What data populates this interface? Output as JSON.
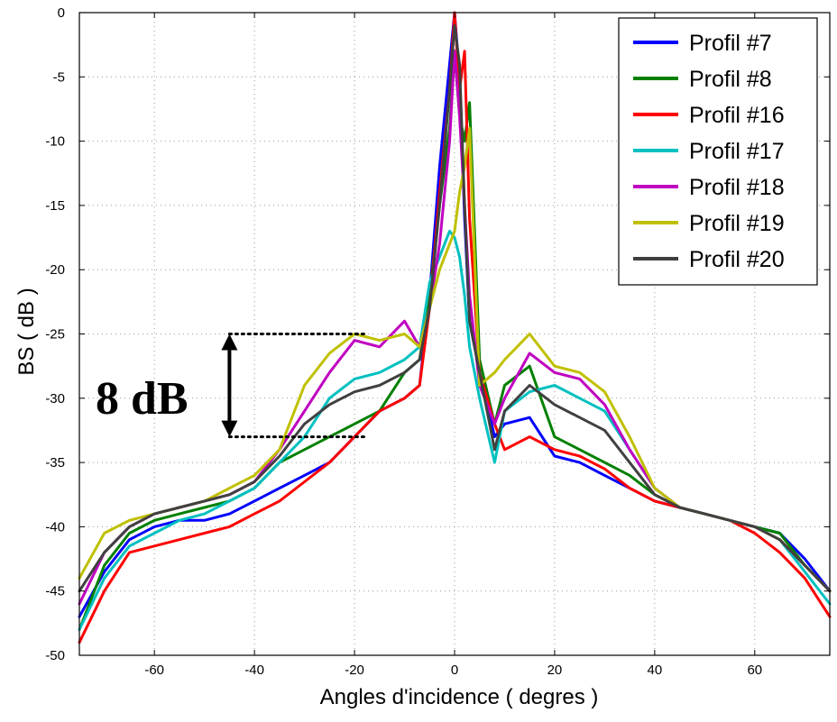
{
  "chart_data": {
    "type": "line",
    "title": "",
    "xlabel": "Angles d'incidence ( degres )",
    "ylabel": "BS ( dB )",
    "xlim": [
      -75,
      75
    ],
    "ylim": [
      -50,
      0
    ],
    "xticks": [
      -60,
      -40,
      -20,
      0,
      20,
      40,
      60
    ],
    "yticks": [
      0,
      -5,
      -10,
      -15,
      -20,
      -25,
      -30,
      -35,
      -40,
      -45,
      -50
    ],
    "grid": true,
    "legend_position": "top-right",
    "annotation": {
      "text": "8 dB",
      "top_level": -25,
      "bottom_level": -33,
      "x_range": [
        -45,
        -18
      ],
      "arrow_x": -45
    },
    "x": [
      -75,
      -70,
      -65,
      -60,
      -55,
      -50,
      -45,
      -40,
      -35,
      -30,
      -25,
      -20,
      -15,
      -10,
      -7,
      -5,
      -3,
      -1,
      0,
      1,
      2,
      3,
      5,
      8,
      10,
      15,
      20,
      25,
      30,
      35,
      40,
      45,
      50,
      55,
      60,
      65,
      70,
      75
    ],
    "series": [
      {
        "name": "Profil #7",
        "color": "#0000ff",
        "values": [
          -47,
          -43.5,
          -41,
          -40,
          -39.5,
          -39.5,
          -39,
          -38,
          -37,
          -36,
          -35,
          -33,
          -31,
          -30,
          -29,
          -22,
          -12,
          -4,
          0,
          -5,
          -16,
          -24,
          -28,
          -33,
          -32,
          -31.5,
          -34.5,
          -35,
          -36,
          -37,
          -38,
          -38.5,
          -39,
          -39.5,
          -40,
          -40.5,
          -42.5,
          -45
        ]
      },
      {
        "name": "Profil #8",
        "color": "#008000",
        "values": [
          -48,
          -43,
          -40.5,
          -39.5,
          -39,
          -38.5,
          -38,
          -37,
          -35,
          -34,
          -33,
          -32,
          -31,
          -28,
          -27,
          -22,
          -15,
          -9,
          -3,
          -8,
          -10,
          -7,
          -27,
          -32,
          -29,
          -27.5,
          -33,
          -34,
          -35,
          -36,
          -37.5,
          -38.5,
          -39,
          -39.5,
          -40,
          -40.5,
          -43,
          -45
        ]
      },
      {
        "name": "Profil #16",
        "color": "#ff0000",
        "values": [
          -49,
          -45,
          -42,
          -41.5,
          -41,
          -40.5,
          -40,
          -39,
          -38,
          -36.5,
          -35,
          -33,
          -31,
          -30,
          -29,
          -23,
          -14,
          -6,
          0,
          -6,
          -3,
          -16,
          -28,
          -32,
          -34,
          -33,
          -34,
          -34.5,
          -35.5,
          -37,
          -38,
          -38.5,
          -39,
          -39.5,
          -40.5,
          -42,
          -44,
          -47
        ]
      },
      {
        "name": "Profil #17",
        "color": "#00c0c0",
        "values": [
          -48,
          -44,
          -41.5,
          -40.5,
          -39.5,
          -39,
          -38,
          -37,
          -35,
          -33,
          -30,
          -28.5,
          -28,
          -27,
          -26,
          -21,
          -19,
          -17,
          -17.5,
          -19,
          -22,
          -26,
          -30,
          -35,
          -31,
          -29.5,
          -29,
          -30,
          -31,
          -34,
          -37,
          -38.5,
          -39,
          -39.5,
          -40,
          -41,
          -43.5,
          -46
        ]
      },
      {
        "name": "Profil #18",
        "color": "#c000c0",
        "values": [
          -46,
          -42,
          -40,
          -39,
          -38.5,
          -38,
          -37.5,
          -36.5,
          -34,
          -31,
          -28,
          -25.5,
          -26,
          -24,
          -26,
          -23,
          -18,
          -10,
          -3,
          -8,
          -15,
          -22,
          -29,
          -32,
          -30,
          -26.5,
          -28,
          -28.5,
          -30.5,
          -34,
          -37,
          -38.5,
          -39,
          -39.5,
          -40,
          -41,
          -43,
          -45
        ]
      },
      {
        "name": "Profil #19",
        "color": "#c0c000",
        "values": [
          -44,
          -40.5,
          -39.5,
          -39,
          -38.5,
          -38,
          -37,
          -36,
          -34,
          -29,
          -26.5,
          -25,
          -25.5,
          -25,
          -26,
          -23,
          -20,
          -18,
          -17,
          -14,
          -12,
          -9,
          -29,
          -28,
          -27,
          -25,
          -27.5,
          -28,
          -29.5,
          -33,
          -37,
          -38.5,
          -39,
          -39.5,
          -40,
          -41,
          -43,
          -45
        ]
      },
      {
        "name": "Profil #20",
        "color": "#404040",
        "values": [
          -45,
          -42,
          -40,
          -39,
          -38.5,
          -38,
          -37.5,
          -36.5,
          -34.5,
          -32,
          -30.5,
          -29.5,
          -29,
          -28,
          -27,
          -23,
          -15,
          -6,
          -1,
          -4,
          -15,
          -24,
          -28,
          -34,
          -31,
          -29,
          -30.5,
          -31.5,
          -32.5,
          -35,
          -37.5,
          -38.5,
          -39,
          -39.5,
          -40,
          -41,
          -43,
          -45
        ]
      }
    ]
  }
}
